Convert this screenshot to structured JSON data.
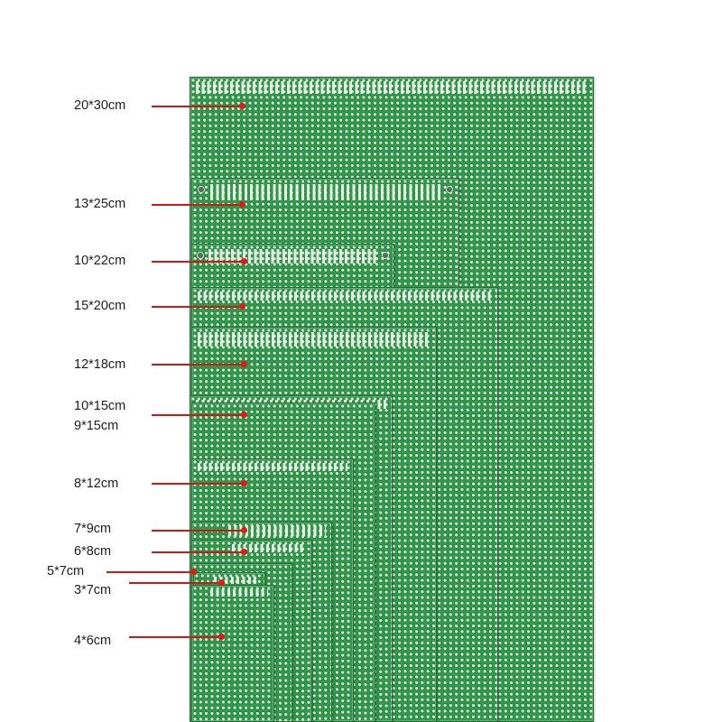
{
  "labels": {
    "s1": "20*30cm",
    "s2": "13*25cm",
    "s3": "10*22cm",
    "s4": "15*20cm",
    "s5": "12*18cm",
    "s6": "10*15cm",
    "s7": "9*15cm",
    "s8": "8*12cm",
    "s9": "7*9cm",
    "s10": "6*8cm",
    "s11": "5*7cm",
    "s12": "3*7cm",
    "s13": "4*6cm"
  },
  "colors": {
    "board_green": "#2f9a4a",
    "leader_red": "#e01919",
    "label_text": "#1d1d1d",
    "background": "#ffffff"
  }
}
